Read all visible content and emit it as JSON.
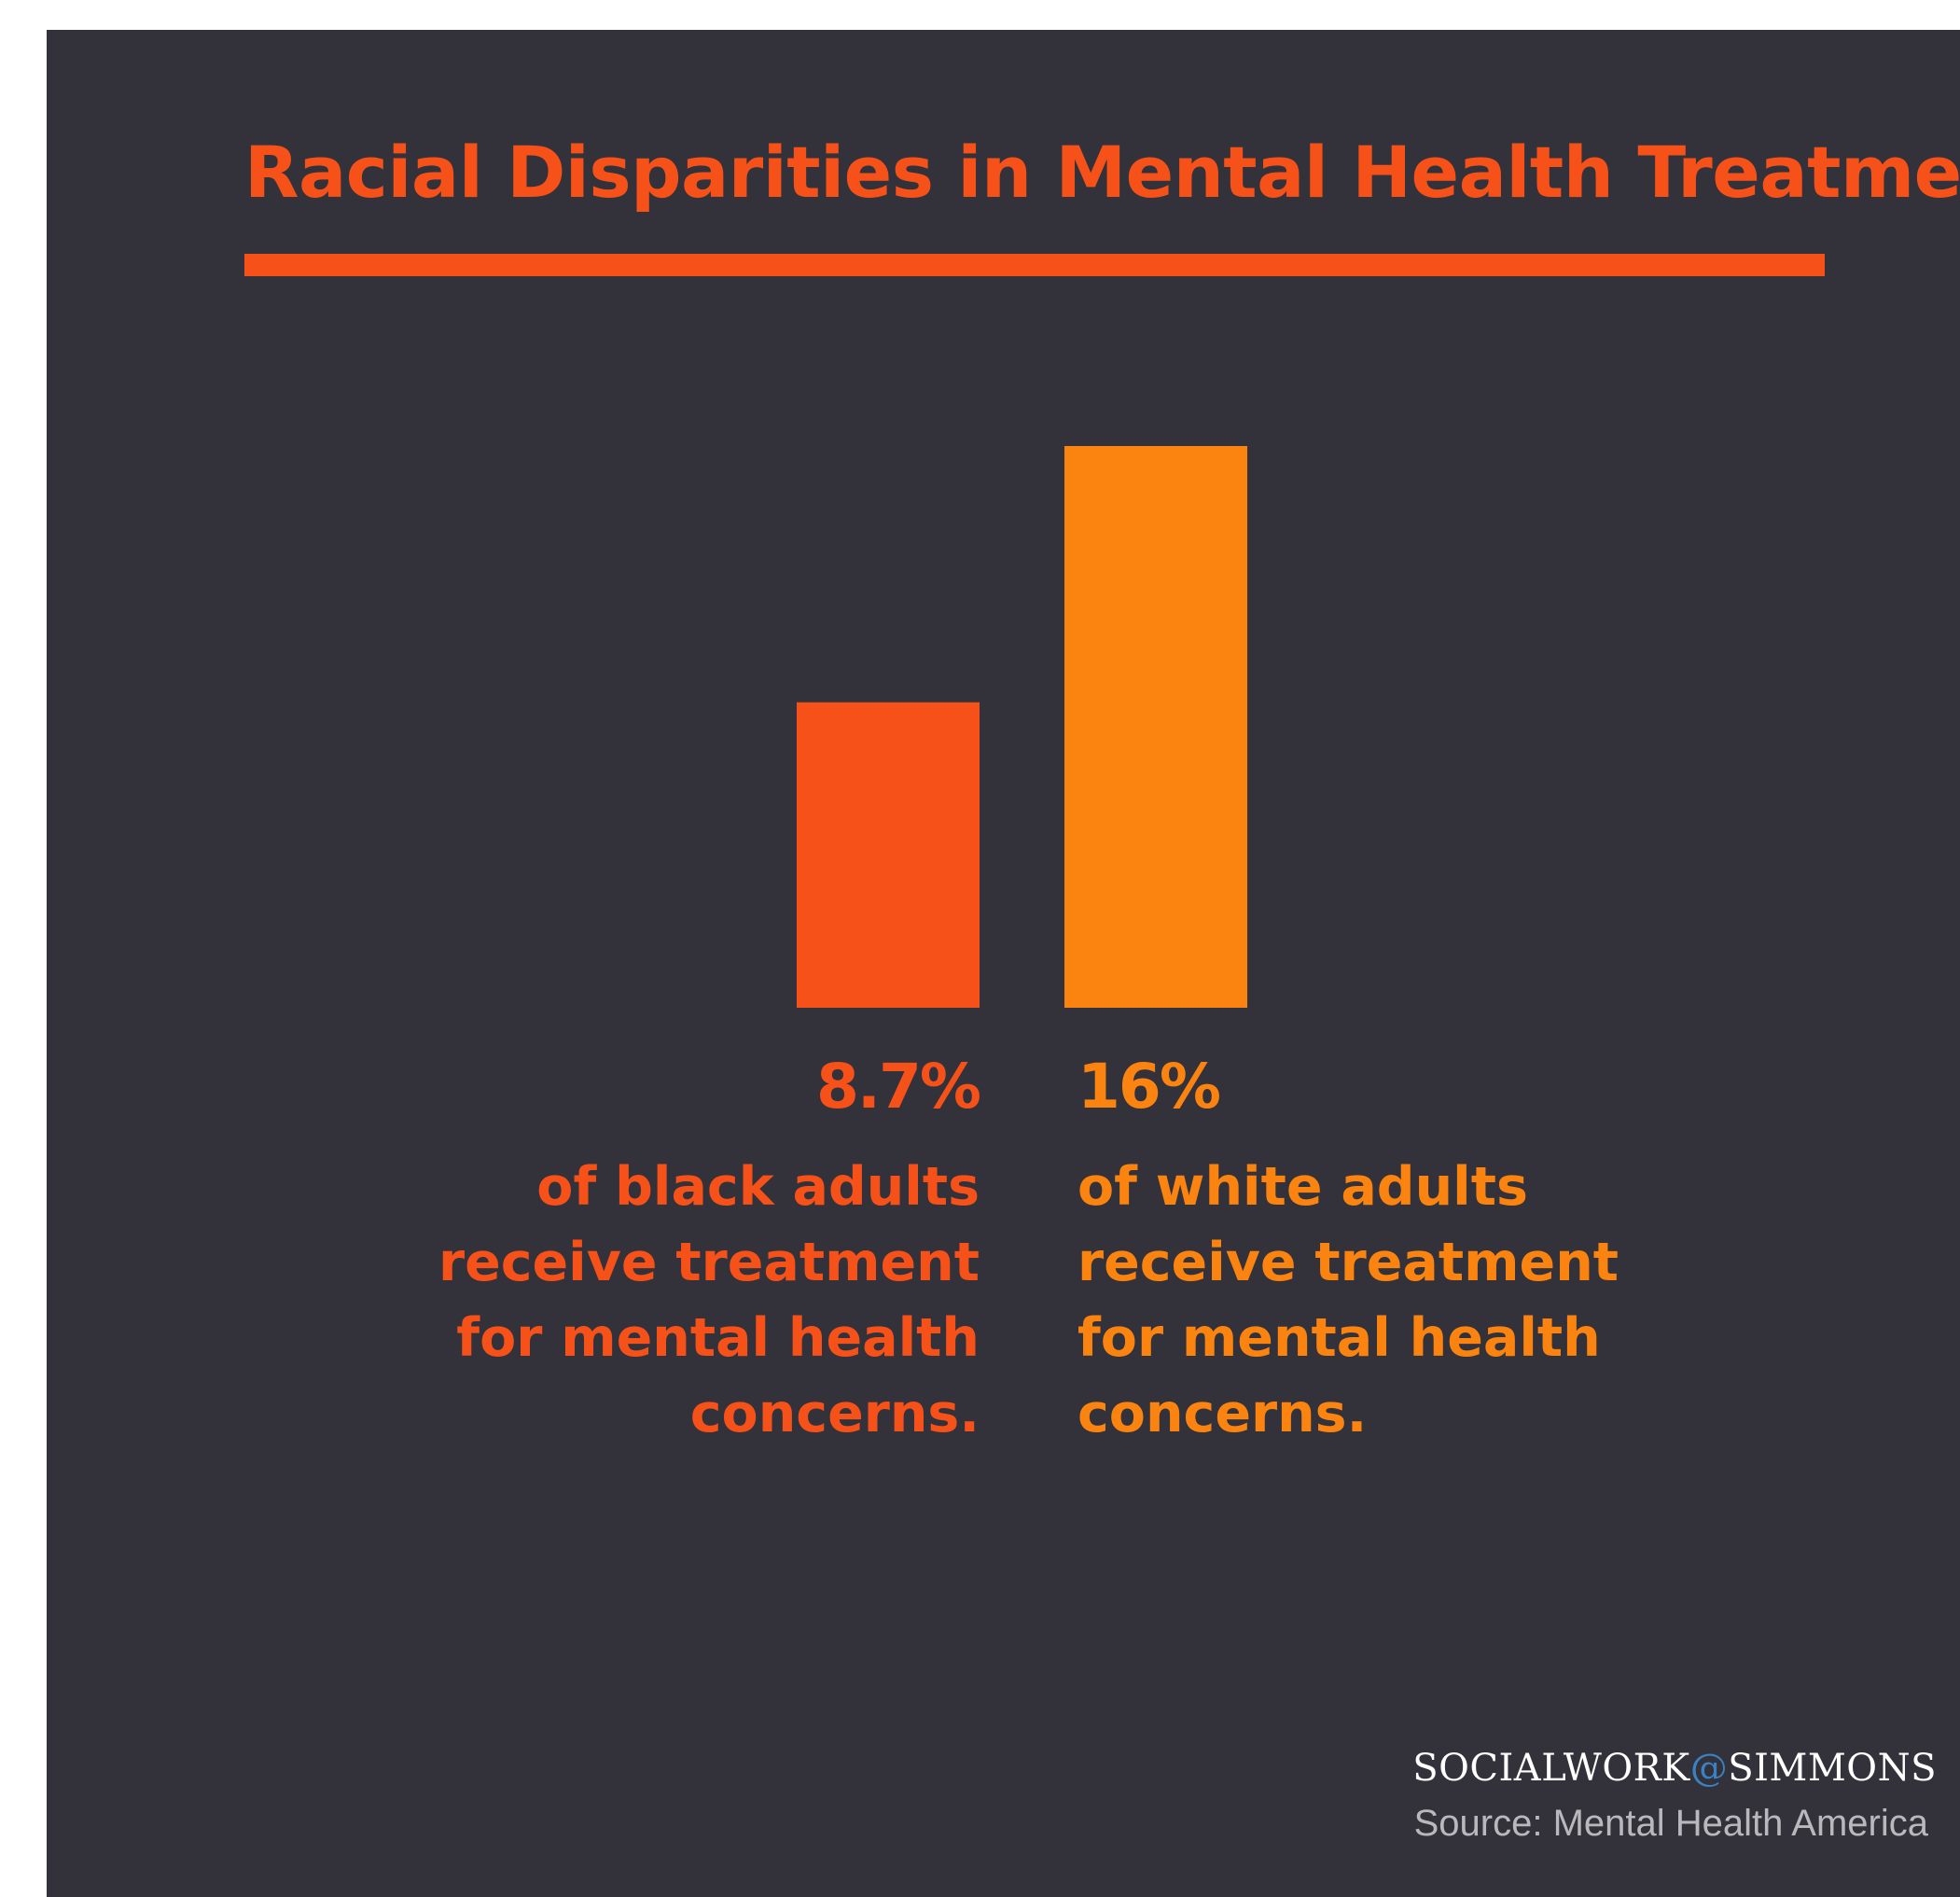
{
  "title": "Racial Disparities in Mental Health Treatment",
  "chart_data": {
    "type": "bar",
    "categories": [
      "black adults",
      "white adults"
    ],
    "values": [
      8.7,
      16
    ],
    "value_labels": [
      "8.7%",
      "16%"
    ],
    "descriptions": [
      [
        "of black adults",
        "receive treatment",
        "for mental health",
        "concerns."
      ],
      [
        "of white adults",
        "receive treatment",
        "for mental health",
        "concerns."
      ]
    ],
    "colors": [
      "#f7511a",
      "#fb8411"
    ],
    "ylim": [
      0,
      16
    ],
    "grid": false,
    "legend": "none"
  },
  "footer": {
    "brand_left": "SOCIALWORK",
    "brand_at": "@",
    "brand_right": "SIMMONS",
    "source": "Source: Mental Health America"
  },
  "colors": {
    "background": "#33323b",
    "accent": "#f7511a",
    "accent_light": "#fb8411",
    "brand_at": "#3b82c4"
  }
}
